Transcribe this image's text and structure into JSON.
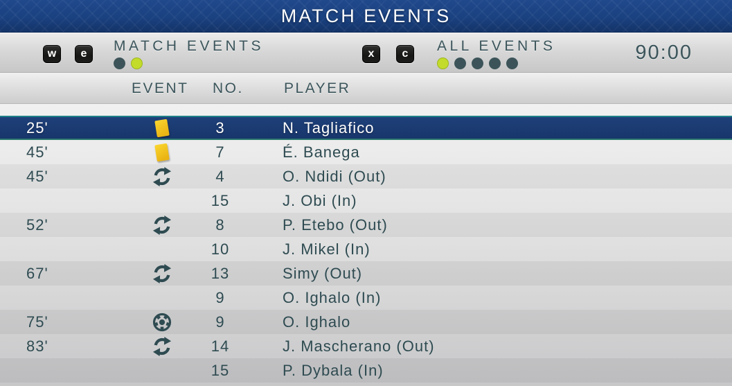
{
  "title_bar": {
    "title": "MATCH EVENTS"
  },
  "control_bar": {
    "match_events": {
      "keys": [
        "w",
        "e"
      ],
      "label": "MATCH EVENTS",
      "dots_active": [
        false,
        true
      ]
    },
    "all_events": {
      "keys": [
        "x",
        "c"
      ],
      "label": "ALL EVENTS",
      "dots_active": [
        true,
        false,
        false,
        false,
        false
      ]
    },
    "clock": "90:00"
  },
  "table": {
    "columns": {
      "event": "EVENT",
      "no": "NO.",
      "player": "PLAYER"
    },
    "rows": [
      {
        "time": "25'",
        "icon": "yellow-card",
        "no": "3",
        "player": "N. Tagliafico",
        "selected": true
      },
      {
        "time": "45'",
        "icon": "yellow-card",
        "no": "7",
        "player": "É. Banega",
        "selected": false
      },
      {
        "time": "45'",
        "icon": "substitution",
        "no": "4",
        "player": "O. Ndidi (Out)",
        "selected": false
      },
      {
        "time": "",
        "icon": "",
        "no": "15",
        "player": "J. Obi (In)",
        "selected": false
      },
      {
        "time": "52'",
        "icon": "substitution",
        "no": "8",
        "player": "P. Etebo (Out)",
        "selected": false
      },
      {
        "time": "",
        "icon": "",
        "no": "10",
        "player": "J. Mikel (In)",
        "selected": false
      },
      {
        "time": "67'",
        "icon": "substitution",
        "no": "13",
        "player": "Simy (Out)",
        "selected": false
      },
      {
        "time": "",
        "icon": "",
        "no": "9",
        "player": "O. Ighalo (In)",
        "selected": false
      },
      {
        "time": "75'",
        "icon": "goal",
        "no": "9",
        "player": "O. Ighalo",
        "selected": false
      },
      {
        "time": "83'",
        "icon": "substitution",
        "no": "14",
        "player": "J. Mascherano (Out)",
        "selected": false
      },
      {
        "time": "",
        "icon": "",
        "no": "15",
        "player": "P. Dybala (In)",
        "selected": false
      }
    ]
  },
  "colors": {
    "icon_teal": "#2e4b51",
    "yellow_card_top": "#fbd62f",
    "yellow_card_bottom": "#e9b414",
    "accent_yellow_green": "#c3dc2b",
    "dot_dark": "#3c5459",
    "selected_row_navy": "#1b3b71",
    "selected_border_top": "#1f8088",
    "selected_border_bottom": "#2c7a6e",
    "title_bar_blue": "#1a4180"
  }
}
